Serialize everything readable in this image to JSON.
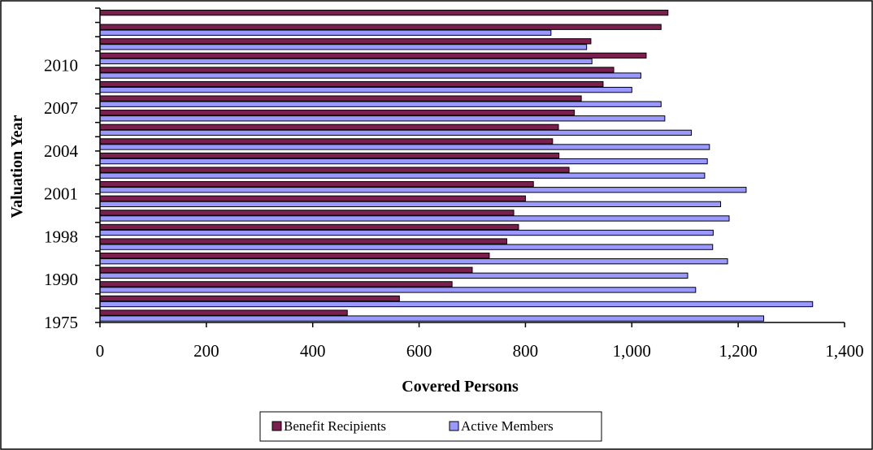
{
  "chart_data": {
    "type": "bar",
    "orientation": "horizontal",
    "xlabel": "Covered Persons",
    "ylabel": "Valuation Year",
    "xlim": [
      0,
      1400
    ],
    "xticks": [
      "0",
      "200",
      "400",
      "600",
      "800",
      "1,000",
      "1,200",
      "1,400"
    ],
    "y_tick_labels": [
      "1975",
      "1990",
      "1998",
      "2001",
      "2004",
      "2007",
      "2010"
    ],
    "grid": false,
    "legend_position": "bottom",
    "series": [
      {
        "name": "Benefit Recipients",
        "color": "#7b1f4f",
        "values": [
          465,
          563,
          662,
          700,
          732,
          765,
          787,
          778,
          800,
          815,
          882,
          863,
          851,
          862,
          892,
          905,
          946,
          966,
          1027,
          923,
          1055,
          1068
        ]
      },
      {
        "name": "Active Members",
        "color": "#9999ff",
        "values": [
          1248,
          1340,
          1120,
          1105,
          1180,
          1152,
          1153,
          1183,
          1167,
          1215,
          1137,
          1142,
          1146,
          1112,
          1062,
          1055,
          1000,
          1017,
          925,
          915,
          848,
          0
        ]
      }
    ]
  },
  "legend": {
    "items": [
      {
        "label": "Benefit Recipients",
        "color": "#7b1f4f"
      },
      {
        "label": "Active Members",
        "color": "#9999ff"
      }
    ]
  }
}
